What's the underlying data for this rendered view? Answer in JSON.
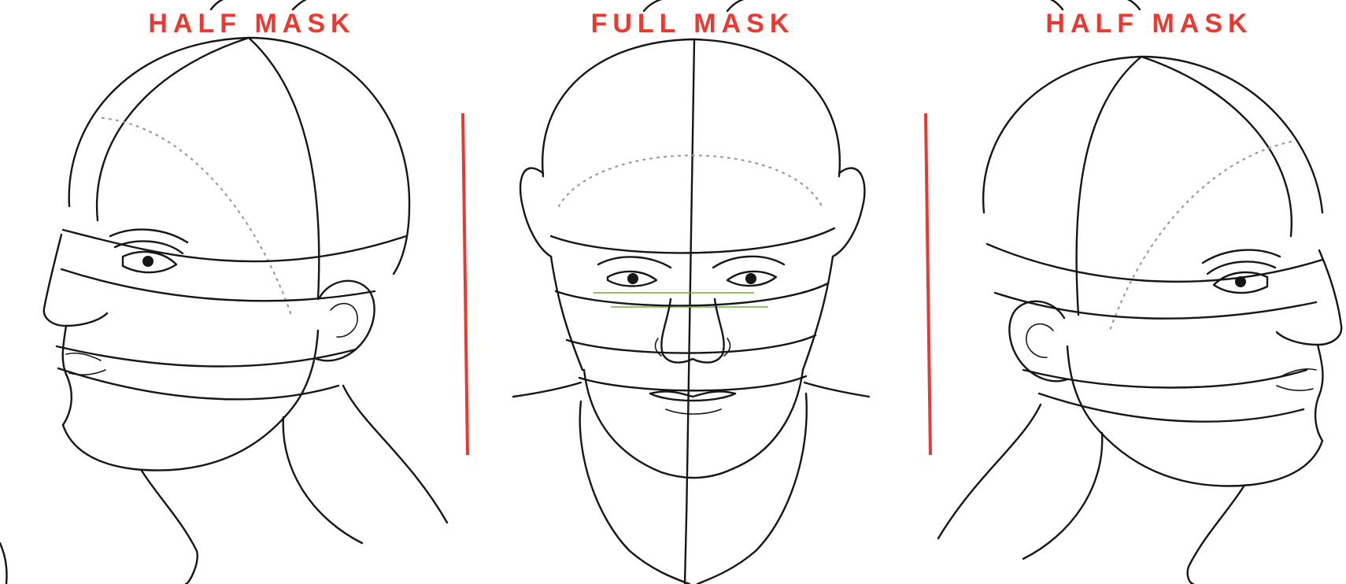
{
  "panels": [
    {
      "id": "left",
      "title": "HALF MASK"
    },
    {
      "id": "center",
      "title": "FULL MASK"
    },
    {
      "id": "right",
      "title": "HALF MASK"
    }
  ],
  "colors": {
    "title": "#e83a33",
    "divider": "#e83a33",
    "guide": "#6fae3f",
    "ink": "#161616",
    "construction_dots": "#9a9a9a",
    "background": "#ffffff"
  }
}
